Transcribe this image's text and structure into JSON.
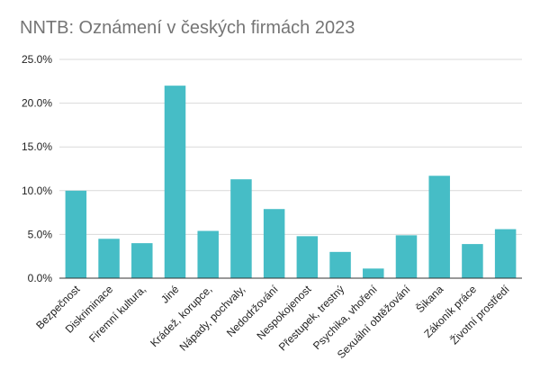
{
  "chart_data": {
    "type": "bar",
    "title": "NNTB: Oznámení v českých firmách 2023",
    "xlabel": "",
    "ylabel": "",
    "ylim": [
      0,
      25
    ],
    "yticks": [
      "0.0%",
      "5.0%",
      "10.0%",
      "15.0%",
      "20.0%",
      "25.0%"
    ],
    "ytick_values": [
      0,
      5,
      10,
      15,
      20,
      25
    ],
    "grid": true,
    "legend": "none",
    "bar_color": "#46bdc6",
    "categories": [
      "Bezpečnost",
      "Diskriminace",
      "Firemní kultura,",
      "Jiné",
      "Krádež, korupce,",
      "Nápady, pochvaly,",
      "Nedodržování",
      "Nespokojenost",
      "Přestupek, trestný",
      "Psychika, vhoření",
      "Sexuální obtěžování",
      "Šikana",
      "Zákoník práce",
      "Životní prostředí"
    ],
    "values": [
      10.0,
      4.5,
      4.0,
      22.0,
      5.4,
      11.3,
      7.9,
      4.8,
      3.0,
      1.1,
      4.9,
      11.7,
      3.9,
      5.6
    ]
  }
}
